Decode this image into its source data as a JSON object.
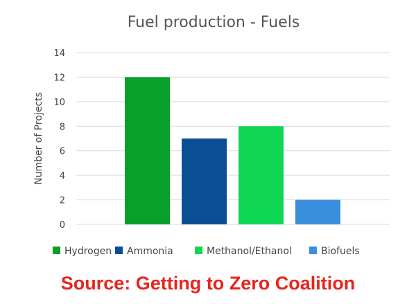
{
  "chart_data": {
    "type": "bar",
    "title": "Fuel production - Fuels",
    "ylabel": "Number of Projects",
    "xlabel": "",
    "ylim": [
      0,
      14
    ],
    "yticks": [
      0,
      2,
      4,
      6,
      8,
      10,
      12,
      14
    ],
    "grid": true,
    "legend_position": "bottom",
    "categories": [
      "Hydrogen",
      "Ammonia",
      "Methanol/Ethanol",
      "Biofuels"
    ],
    "values": [
      12,
      7,
      8,
      2
    ],
    "colors": [
      "#0a9e2a",
      "#0a4f96",
      "#0fd654",
      "#3a8fdc"
    ]
  },
  "caption": "Source: Getting to Zero Coalition",
  "caption_color": "#e8231b"
}
